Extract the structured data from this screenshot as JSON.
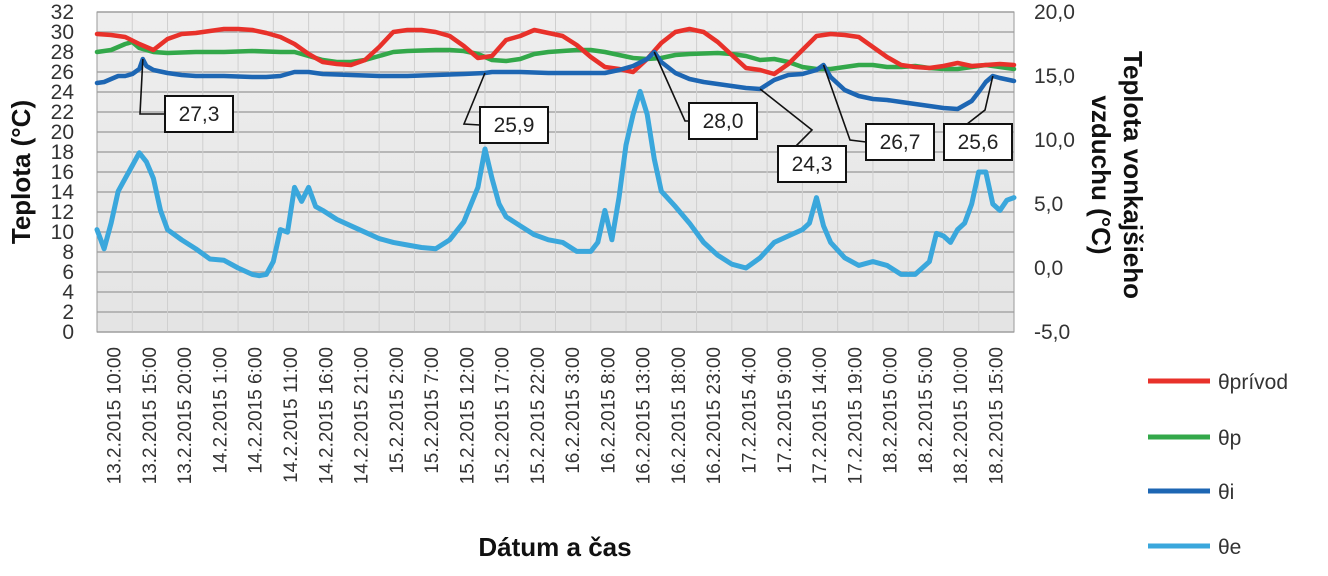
{
  "chart_data": {
    "type": "line",
    "title": "",
    "xlabel": "Dátum a čas",
    "ylabel": "Teplota (°C)",
    "y2label": [
      "Teplota vonkajšieho",
      "vzduchu (°C)"
    ],
    "ylim": [
      0,
      32
    ],
    "y2lim": [
      -5,
      20
    ],
    "yticks": [
      0,
      2,
      4,
      6,
      8,
      10,
      12,
      14,
      16,
      18,
      20,
      22,
      24,
      26,
      28,
      30,
      32
    ],
    "yticklabels": [
      "0",
      "2",
      "4",
      "6",
      "8",
      "10",
      "12",
      "14",
      "16",
      "18",
      "20",
      "22",
      "24",
      "26",
      "28",
      "30",
      "32"
    ],
    "y2ticks": [
      -5,
      0,
      5,
      10,
      15,
      20
    ],
    "y2ticklabels": [
      "-5,0",
      "0,0",
      "5,0",
      "10,0",
      "15,0",
      "20,0"
    ],
    "xlim_hours": [
      0,
      130
    ],
    "x_tick_labels": [
      "13.2.2015 10:00",
      "13.2.2015 15:00",
      "13.2.2015 20:00",
      "14.2.2015 1:00",
      "14.2.2015 6:00",
      "14.2.2015 11:00",
      "14.2.2015 16:00",
      "14.2.2015 21:00",
      "15.2.2015 2:00",
      "15.2.2015 7:00",
      "15.2.2015 12:00",
      "15.2.2015 17:00",
      "15.2.2015 22:00",
      "16.2.2015 3:00",
      "16.2.2015 8:00",
      "16.2.2015 13:00",
      "16.2.2015 18:00",
      "16.2.2015 23:00",
      "17.2.2015 4:00",
      "17.2.2015 9:00",
      "17.2.2015 14:00",
      "17.2.2015 19:00",
      "18.2.2015 0:00",
      "18.2.2015 5:00",
      "18.2.2015 10:00",
      "18.2.2015 15:00"
    ],
    "grid": true,
    "legend_position": "right",
    "series": [
      {
        "name": "θprívod",
        "color": "#e8312a",
        "axis": "left",
        "points": [
          [
            0,
            29.8
          ],
          [
            2,
            29.7
          ],
          [
            4,
            29.5
          ],
          [
            6,
            28.8
          ],
          [
            8,
            28.2
          ],
          [
            10,
            29.3
          ],
          [
            12,
            29.8
          ],
          [
            14,
            29.9
          ],
          [
            16,
            30.1
          ],
          [
            18,
            30.3
          ],
          [
            20,
            30.3
          ],
          [
            22,
            30.2
          ],
          [
            24,
            29.9
          ],
          [
            26,
            29.5
          ],
          [
            28,
            28.8
          ],
          [
            30,
            27.8
          ],
          [
            32,
            27.0
          ],
          [
            34,
            26.8
          ],
          [
            36,
            26.7
          ],
          [
            38,
            27.2
          ],
          [
            40,
            28.5
          ],
          [
            42,
            30.0
          ],
          [
            44,
            30.2
          ],
          [
            46,
            30.2
          ],
          [
            48,
            30.0
          ],
          [
            50,
            29.6
          ],
          [
            52,
            28.6
          ],
          [
            54,
            27.4
          ],
          [
            56,
            27.6
          ],
          [
            58,
            29.2
          ],
          [
            60,
            29.6
          ],
          [
            62,
            30.2
          ],
          [
            64,
            29.9
          ],
          [
            66,
            29.6
          ],
          [
            68,
            28.7
          ],
          [
            70,
            27.5
          ],
          [
            72,
            26.5
          ],
          [
            74,
            26.3
          ],
          [
            76,
            26.0
          ],
          [
            78,
            27.3
          ],
          [
            80,
            28.9
          ],
          [
            82,
            30.0
          ],
          [
            84,
            30.3
          ],
          [
            86,
            30.0
          ],
          [
            88,
            29.0
          ],
          [
            90,
            27.7
          ],
          [
            92,
            26.4
          ],
          [
            94,
            26.2
          ],
          [
            96,
            25.8
          ],
          [
            98,
            26.8
          ],
          [
            100,
            28.2
          ],
          [
            102,
            29.6
          ],
          [
            104,
            29.8
          ],
          [
            106,
            29.7
          ],
          [
            108,
            29.5
          ],
          [
            110,
            28.5
          ],
          [
            112,
            27.5
          ],
          [
            114,
            26.7
          ],
          [
            116,
            26.5
          ],
          [
            118,
            26.4
          ],
          [
            120,
            26.6
          ],
          [
            122,
            26.9
          ],
          [
            124,
            26.6
          ],
          [
            126,
            26.7
          ],
          [
            128,
            26.8
          ],
          [
            130,
            26.7
          ]
        ]
      },
      {
        "name": "θp",
        "color": "#33a84a",
        "axis": "left",
        "points": [
          [
            0,
            28.0
          ],
          [
            2,
            28.2
          ],
          [
            4,
            28.8
          ],
          [
            5,
            29.0
          ],
          [
            6,
            28.4
          ],
          [
            8,
            28.0
          ],
          [
            10,
            27.9
          ],
          [
            14,
            28.0
          ],
          [
            18,
            28.0
          ],
          [
            22,
            28.1
          ],
          [
            26,
            28.0
          ],
          [
            28,
            28.0
          ],
          [
            30,
            27.6
          ],
          [
            32,
            27.2
          ],
          [
            34,
            27.0
          ],
          [
            36,
            27.0
          ],
          [
            38,
            27.2
          ],
          [
            40,
            27.6
          ],
          [
            42,
            28.0
          ],
          [
            44,
            28.1
          ],
          [
            48,
            28.2
          ],
          [
            50,
            28.2
          ],
          [
            52,
            28.1
          ],
          [
            54,
            27.8
          ],
          [
            56,
            27.2
          ],
          [
            58,
            27.1
          ],
          [
            60,
            27.3
          ],
          [
            62,
            27.8
          ],
          [
            64,
            28.0
          ],
          [
            66,
            28.1
          ],
          [
            68,
            28.2
          ],
          [
            70,
            28.2
          ],
          [
            72,
            28.0
          ],
          [
            74,
            27.7
          ],
          [
            76,
            27.4
          ],
          [
            78,
            27.3
          ],
          [
            80,
            27.4
          ],
          [
            82,
            27.7
          ],
          [
            84,
            27.8
          ],
          [
            88,
            27.9
          ],
          [
            90,
            27.8
          ],
          [
            92,
            27.6
          ],
          [
            94,
            27.2
          ],
          [
            96,
            27.3
          ],
          [
            98,
            27.0
          ],
          [
            100,
            26.5
          ],
          [
            102,
            26.3
          ],
          [
            104,
            26.3
          ],
          [
            106,
            26.5
          ],
          [
            108,
            26.7
          ],
          [
            110,
            26.7
          ],
          [
            112,
            26.5
          ],
          [
            114,
            26.5
          ],
          [
            116,
            26.6
          ],
          [
            118,
            26.4
          ],
          [
            120,
            26.3
          ],
          [
            122,
            26.3
          ],
          [
            124,
            26.5
          ],
          [
            126,
            26.7
          ],
          [
            128,
            26.5
          ],
          [
            130,
            26.3
          ]
        ]
      },
      {
        "name": "θi",
        "color": "#1d66b3",
        "axis": "left",
        "points": [
          [
            0,
            24.9
          ],
          [
            1,
            25.0
          ],
          [
            2,
            25.3
          ],
          [
            3,
            25.6
          ],
          [
            4,
            25.6
          ],
          [
            5,
            25.8
          ],
          [
            6,
            26.3
          ],
          [
            6.5,
            27.3
          ],
          [
            7,
            26.6
          ],
          [
            8,
            26.2
          ],
          [
            10,
            25.9
          ],
          [
            12,
            25.7
          ],
          [
            14,
            25.6
          ],
          [
            18,
            25.6
          ],
          [
            22,
            25.5
          ],
          [
            24,
            25.5
          ],
          [
            26,
            25.6
          ],
          [
            28,
            26.0
          ],
          [
            30,
            26.0
          ],
          [
            32,
            25.8
          ],
          [
            36,
            25.7
          ],
          [
            40,
            25.6
          ],
          [
            44,
            25.6
          ],
          [
            48,
            25.7
          ],
          [
            52,
            25.8
          ],
          [
            55,
            25.9
          ],
          [
            56,
            26.0
          ],
          [
            58,
            26.0
          ],
          [
            60,
            26.0
          ],
          [
            64,
            25.9
          ],
          [
            68,
            25.9
          ],
          [
            72,
            25.9
          ],
          [
            74,
            26.2
          ],
          [
            76,
            26.6
          ],
          [
            78,
            27.3
          ],
          [
            79,
            28.0
          ],
          [
            80,
            27.0
          ],
          [
            82,
            25.9
          ],
          [
            84,
            25.3
          ],
          [
            86,
            25.0
          ],
          [
            88,
            24.8
          ],
          [
            90,
            24.6
          ],
          [
            92,
            24.4
          ],
          [
            94,
            24.3
          ],
          [
            96,
            25.2
          ],
          [
            98,
            25.7
          ],
          [
            100,
            25.8
          ],
          [
            102,
            26.2
          ],
          [
            103,
            26.7
          ],
          [
            104,
            25.5
          ],
          [
            106,
            24.2
          ],
          [
            108,
            23.6
          ],
          [
            110,
            23.3
          ],
          [
            112,
            23.2
          ],
          [
            114,
            23.0
          ],
          [
            116,
            22.8
          ],
          [
            118,
            22.6
          ],
          [
            120,
            22.4
          ],
          [
            122,
            22.3
          ],
          [
            124,
            23.1
          ],
          [
            125,
            24.0
          ],
          [
            126,
            25.0
          ],
          [
            127,
            25.6
          ],
          [
            128,
            25.4
          ],
          [
            130,
            25.1
          ]
        ]
      },
      {
        "name": "θe",
        "color": "#3aa7dc",
        "axis": "right",
        "points": [
          [
            0,
            3.0
          ],
          [
            1,
            1.5
          ],
          [
            2,
            3.5
          ],
          [
            3,
            6.0
          ],
          [
            4,
            7.0
          ],
          [
            5,
            8.0
          ],
          [
            6,
            9.0
          ],
          [
            7,
            8.3
          ],
          [
            8,
            7.0
          ],
          [
            9,
            4.5
          ],
          [
            10,
            3.0
          ],
          [
            12,
            2.2
          ],
          [
            14,
            1.5
          ],
          [
            16,
            0.7
          ],
          [
            18,
            0.6
          ],
          [
            20,
            0.0
          ],
          [
            22,
            -0.5
          ],
          [
            23,
            -0.6
          ],
          [
            24,
            -0.5
          ],
          [
            25,
            0.5
          ],
          [
            26,
            3.0
          ],
          [
            27,
            2.8
          ],
          [
            28,
            6.3
          ],
          [
            29,
            5.2
          ],
          [
            30,
            6.3
          ],
          [
            31,
            4.8
          ],
          [
            32,
            4.5
          ],
          [
            34,
            3.8
          ],
          [
            36,
            3.3
          ],
          [
            38,
            2.8
          ],
          [
            40,
            2.3
          ],
          [
            42,
            2.0
          ],
          [
            44,
            1.8
          ],
          [
            46,
            1.6
          ],
          [
            48,
            1.5
          ],
          [
            50,
            2.2
          ],
          [
            52,
            3.6
          ],
          [
            54,
            6.3
          ],
          [
            55,
            9.3
          ],
          [
            56,
            7.0
          ],
          [
            57,
            5.0
          ],
          [
            58,
            4.0
          ],
          [
            60,
            3.3
          ],
          [
            62,
            2.6
          ],
          [
            64,
            2.2
          ],
          [
            66,
            2.0
          ],
          [
            68,
            1.3
          ],
          [
            70,
            1.3
          ],
          [
            71,
            2.0
          ],
          [
            72,
            4.5
          ],
          [
            73,
            2.2
          ],
          [
            74,
            5.5
          ],
          [
            75,
            9.6
          ],
          [
            76,
            12.0
          ],
          [
            77,
            13.8
          ],
          [
            78,
            12.0
          ],
          [
            79,
            8.5
          ],
          [
            80,
            6.0
          ],
          [
            82,
            4.8
          ],
          [
            84,
            3.5
          ],
          [
            86,
            2.0
          ],
          [
            88,
            1.0
          ],
          [
            90,
            0.3
          ],
          [
            92,
            0.0
          ],
          [
            94,
            0.8
          ],
          [
            96,
            2.0
          ],
          [
            98,
            2.5
          ],
          [
            100,
            3.0
          ],
          [
            101,
            3.5
          ],
          [
            102,
            5.5
          ],
          [
            103,
            3.3
          ],
          [
            104,
            2.0
          ],
          [
            106,
            0.8
          ],
          [
            108,
            0.2
          ],
          [
            110,
            0.5
          ],
          [
            112,
            0.2
          ],
          [
            114,
            -0.5
          ],
          [
            116,
            -0.5
          ],
          [
            118,
            0.5
          ],
          [
            119,
            2.7
          ],
          [
            120,
            2.5
          ],
          [
            121,
            2.0
          ],
          [
            122,
            3.0
          ],
          [
            123,
            3.5
          ],
          [
            124,
            5.0
          ],
          [
            125,
            7.5
          ],
          [
            126,
            7.5
          ],
          [
            127,
            5.0
          ],
          [
            128,
            4.5
          ],
          [
            129,
            5.3
          ],
          [
            130,
            5.5
          ]
        ]
      }
    ],
    "annotations": [
      {
        "label": "27,3",
        "series": "θi",
        "x": 6.5,
        "y": 27.3
      },
      {
        "label": "25,9",
        "series": "θi",
        "x": 55,
        "y": 25.9
      },
      {
        "label": "28,0",
        "series": "θi",
        "x": 79,
        "y": 28.0
      },
      {
        "label": "24,3",
        "series": "θi",
        "x": 94,
        "y": 24.3
      },
      {
        "label": "26,7",
        "series": "θi",
        "x": 103,
        "y": 26.7
      },
      {
        "label": "25,6",
        "series": "θi",
        "x": 127,
        "y": 25.6
      }
    ]
  }
}
